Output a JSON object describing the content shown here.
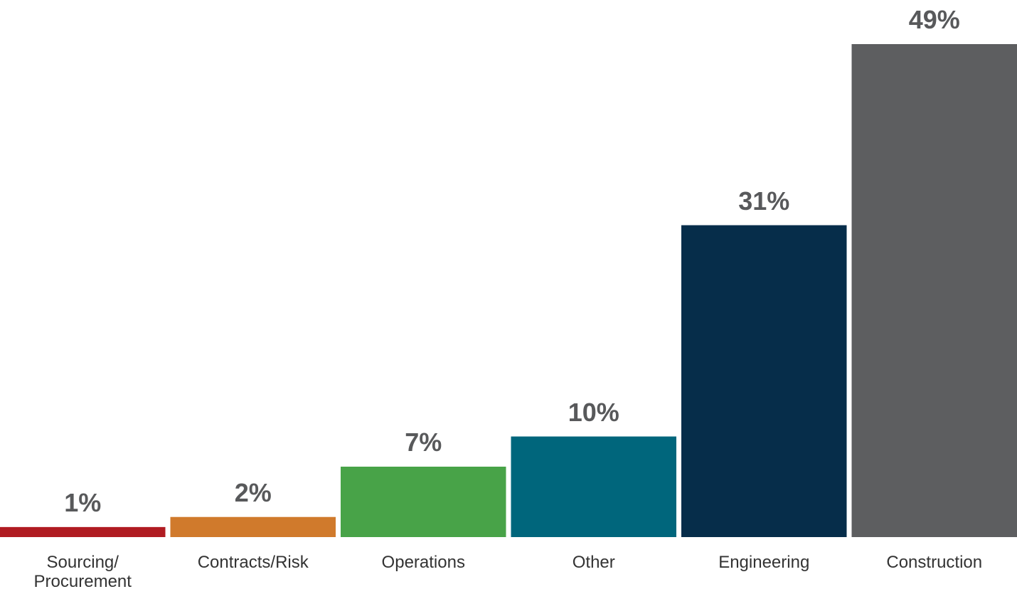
{
  "chart_data": {
    "type": "bar",
    "categories": [
      "Sourcing/\nProcurement",
      "Contracts/Risk",
      "Operations",
      "Other",
      "Engineering",
      "Construction"
    ],
    "values": [
      1,
      2,
      7,
      10,
      31,
      49
    ],
    "value_labels": [
      "1%",
      "2%",
      "7%",
      "10%",
      "31%",
      "49%"
    ],
    "colors": [
      "#b01c22",
      "#d07a2c",
      "#48a348",
      "#00667c",
      "#062d4a",
      "#5d5e60"
    ]
  }
}
